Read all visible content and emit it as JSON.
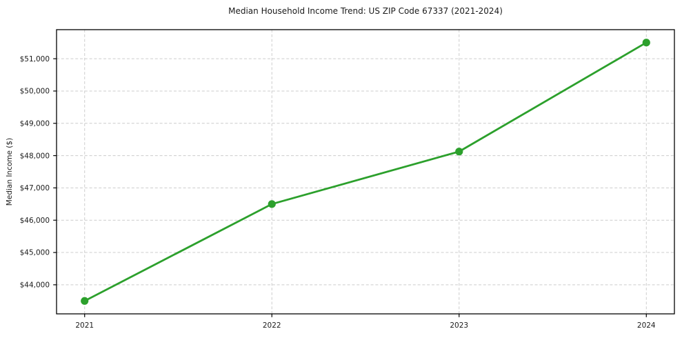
{
  "chart_data": {
    "type": "line",
    "title": "Median Household Income Trend: US ZIP Code 67337 (2021-2024)",
    "xlabel": "",
    "ylabel": "Median Income ($)",
    "x": [
      2021,
      2022,
      2023,
      2024
    ],
    "values": [
      43500,
      46500,
      48125,
      51500
    ],
    "x_tick_labels": [
      "2021",
      "2022",
      "2023",
      "2024"
    ],
    "y_ticks": [
      44000,
      45000,
      46000,
      47000,
      48000,
      49000,
      50000,
      51000
    ],
    "y_tick_labels": [
      "$44,000",
      "$45,000",
      "$46,000",
      "$47,000",
      "$48,000",
      "$49,000",
      "$50,000",
      "$51,000"
    ],
    "xlim": [
      2020.85,
      2024.15
    ],
    "ylim": [
      43100,
      51900
    ],
    "grid": "on",
    "grid_style": "dashed",
    "legend_position": "none",
    "line_color": "#2ca02c",
    "marker": "circle",
    "grid_color": "#cccccc",
    "spine_color": "#000000",
    "background_color": "#ffffff",
    "text_color": "#1a1a1a"
  }
}
